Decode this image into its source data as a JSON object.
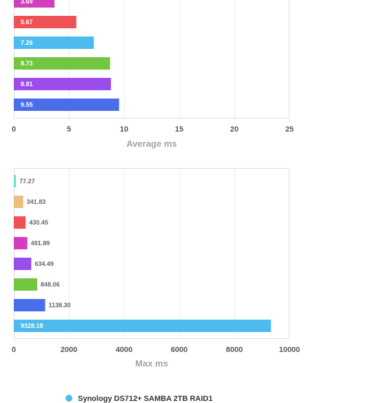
{
  "chart_data": [
    {
      "type": "bar",
      "orientation": "horizontal",
      "xlabel": "Average ms",
      "xlim": [
        0,
        25
      ],
      "xticks": [
        "0",
        "5",
        "10",
        "15",
        "20",
        "25"
      ],
      "grid": true,
      "bars": [
        {
          "value": 3.69,
          "label": "3.69",
          "color": "#d13fbf"
        },
        {
          "value": 5.67,
          "label": "5.67",
          "color": "#ee5256"
        },
        {
          "value": 7.26,
          "label": "7.26",
          "color": "#4dbbee"
        },
        {
          "value": 8.73,
          "label": "8.73",
          "color": "#73c640"
        },
        {
          "value": 8.81,
          "label": "8.81",
          "color": "#9b4cec"
        },
        {
          "value": 9.55,
          "label": "9.55",
          "color": "#4a6ee9"
        }
      ]
    },
    {
      "type": "bar",
      "orientation": "horizontal",
      "xlabel": "Max ms",
      "xlim": [
        0,
        10000
      ],
      "xticks": [
        "0",
        "2000",
        "4000",
        "6000",
        "8000",
        "10000"
      ],
      "grid": true,
      "bars": [
        {
          "value": 77.27,
          "label": "77.27",
          "color": "#5ee6cf"
        },
        {
          "value": 341.83,
          "label": "341.83",
          "color": "#ecbe7e"
        },
        {
          "value": 430.45,
          "label": "430.45",
          "color": "#ee5256"
        },
        {
          "value": 491.89,
          "label": "491.89",
          "color": "#d13fbf"
        },
        {
          "value": 634.49,
          "label": "634.49",
          "color": "#9b4cec"
        },
        {
          "value": 848.06,
          "label": "848.06",
          "color": "#73c640"
        },
        {
          "value": 1138.3,
          "label": "1138.30",
          "color": "#4a6ee9"
        },
        {
          "value": 9328.18,
          "label": "9328.18",
          "color": "#4dbbee"
        }
      ]
    }
  ],
  "legend": {
    "position": "bottom",
    "entries": [
      {
        "name": "Synology DS712+ SAMBA 2TB RAID1",
        "color": "#4dbbee"
      }
    ]
  }
}
